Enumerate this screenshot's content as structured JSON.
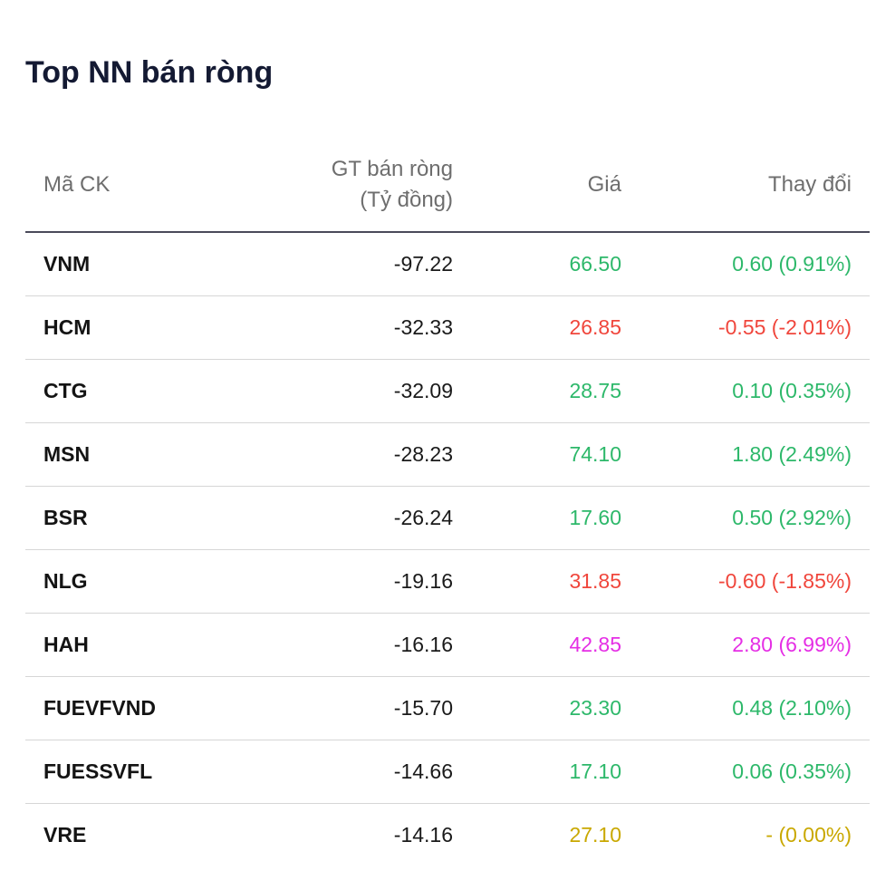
{
  "title": "Top NN bán ròng",
  "headers": {
    "symbol": "Mã CK",
    "net_value_line1": "GT bán ròng",
    "net_value_line2": "(Tỷ đồng)",
    "price": "Giá",
    "change": "Thay đổi"
  },
  "colors": {
    "up": "#2db86a",
    "down": "#f0463c",
    "ceiling": "#e52ee5",
    "reference": "#c9a800"
  },
  "rows": [
    {
      "symbol": "VNM",
      "net_value": "-97.22",
      "price": "66.50",
      "change": "0.60 (0.91%)",
      "status": "up"
    },
    {
      "symbol": "HCM",
      "net_value": "-32.33",
      "price": "26.85",
      "change": "-0.55 (-2.01%)",
      "status": "down"
    },
    {
      "symbol": "CTG",
      "net_value": "-32.09",
      "price": "28.75",
      "change": "0.10 (0.35%)",
      "status": "up"
    },
    {
      "symbol": "MSN",
      "net_value": "-28.23",
      "price": "74.10",
      "change": "1.80 (2.49%)",
      "status": "up"
    },
    {
      "symbol": "BSR",
      "net_value": "-26.24",
      "price": "17.60",
      "change": "0.50 (2.92%)",
      "status": "up"
    },
    {
      "symbol": "NLG",
      "net_value": "-19.16",
      "price": "31.85",
      "change": "-0.60 (-1.85%)",
      "status": "down"
    },
    {
      "symbol": "HAH",
      "net_value": "-16.16",
      "price": "42.85",
      "change": "2.80 (6.99%)",
      "status": "ceiling"
    },
    {
      "symbol": "FUEVFVND",
      "net_value": "-15.70",
      "price": "23.30",
      "change": "0.48 (2.10%)",
      "status": "up"
    },
    {
      "symbol": "FUESSVFL",
      "net_value": "-14.66",
      "price": "17.10",
      "change": "0.06 (0.35%)",
      "status": "up"
    },
    {
      "symbol": "VRE",
      "net_value": "-14.16",
      "price": "27.10",
      "change": "- (0.00%)",
      "status": "reference"
    }
  ]
}
